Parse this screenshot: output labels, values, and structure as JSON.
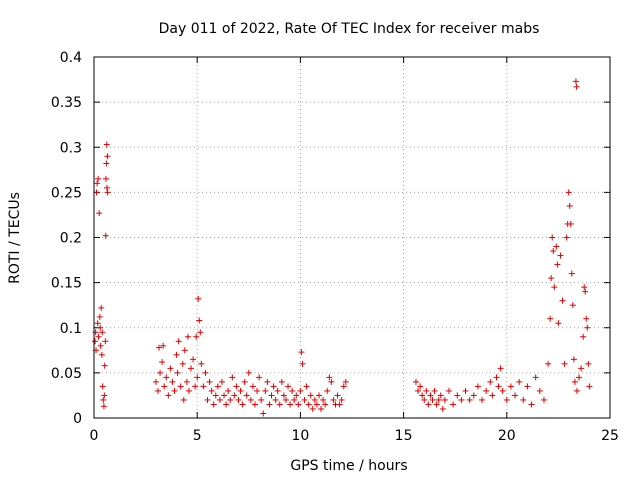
{
  "chart_data": {
    "type": "scatter",
    "title": "Day 011 of 2022, Rate Of TEC Index for receiver mabs",
    "xlabel": "GPS time / hours",
    "ylabel": "ROTI / TECUs",
    "xlim": [
      0,
      25
    ],
    "ylim": [
      0,
      0.4
    ],
    "xticks": [
      "0",
      "5",
      "10",
      "15",
      "20",
      "25"
    ],
    "yticks": [
      "0",
      "0.05",
      "0.1",
      "0.15",
      "0.2",
      "0.25",
      "0.3",
      "0.35",
      "0.4"
    ],
    "grid": true,
    "marker": "+",
    "color": "#e00000",
    "series": [
      {
        "values": [
          [
            0.05,
            0.085
          ],
          [
            0.08,
            0.095
          ],
          [
            0.1,
            0.075
          ],
          [
            0.12,
            0.25
          ],
          [
            0.15,
            0.26
          ],
          [
            0.18,
            0.105
          ],
          [
            0.2,
            0.265
          ],
          [
            0.22,
            0.09
          ],
          [
            0.25,
            0.227
          ],
          [
            0.28,
            0.112
          ],
          [
            0.3,
            0.1
          ],
          [
            0.32,
            0.08
          ],
          [
            0.35,
            0.122
          ],
          [
            0.38,
            0.07
          ],
          [
            0.4,
            0.095
          ],
          [
            0.42,
            0.035
          ],
          [
            0.45,
            0.02
          ],
          [
            0.48,
            0.013
          ],
          [
            0.5,
            0.025
          ],
          [
            0.52,
            0.058
          ],
          [
            0.55,
            0.085
          ],
          [
            0.57,
            0.202
          ],
          [
            0.58,
            0.265
          ],
          [
            0.6,
            0.282
          ],
          [
            0.62,
            0.303
          ],
          [
            0.63,
            0.255
          ],
          [
            0.65,
            0.29
          ],
          [
            0.66,
            0.25
          ],
          [
            3.0,
            0.04
          ],
          [
            3.1,
            0.03
          ],
          [
            3.15,
            0.078
          ],
          [
            3.2,
            0.05
          ],
          [
            3.3,
            0.062
          ],
          [
            3.35,
            0.08
          ],
          [
            3.4,
            0.035
          ],
          [
            3.5,
            0.045
          ],
          [
            3.6,
            0.025
          ],
          [
            3.7,
            0.055
          ],
          [
            3.8,
            0.04
          ],
          [
            3.9,
            0.03
          ],
          [
            4.0,
            0.07
          ],
          [
            4.05,
            0.05
          ],
          [
            4.1,
            0.085
          ],
          [
            4.2,
            0.035
          ],
          [
            4.3,
            0.06
          ],
          [
            4.35,
            0.02
          ],
          [
            4.4,
            0.075
          ],
          [
            4.5,
            0.04
          ],
          [
            4.55,
            0.09
          ],
          [
            4.6,
            0.03
          ],
          [
            4.7,
            0.055
          ],
          [
            4.8,
            0.065
          ],
          [
            4.9,
            0.035
          ],
          [
            4.95,
            0.09
          ],
          [
            5.0,
            0.045
          ],
          [
            5.05,
            0.132
          ],
          [
            5.1,
            0.108
          ],
          [
            5.15,
            0.095
          ],
          [
            5.2,
            0.06
          ],
          [
            5.3,
            0.035
          ],
          [
            5.4,
            0.05
          ],
          [
            5.5,
            0.02
          ],
          [
            5.6,
            0.04
          ],
          [
            5.7,
            0.03
          ],
          [
            5.8,
            0.015
          ],
          [
            5.9,
            0.025
          ],
          [
            6.0,
            0.035
          ],
          [
            6.1,
            0.02
          ],
          [
            6.2,
            0.04
          ],
          [
            6.3,
            0.025
          ],
          [
            6.4,
            0.015
          ],
          [
            6.5,
            0.03
          ],
          [
            6.6,
            0.02
          ],
          [
            6.7,
            0.045
          ],
          [
            6.8,
            0.025
          ],
          [
            6.9,
            0.035
          ],
          [
            7.0,
            0.02
          ],
          [
            7.1,
            0.03
          ],
          [
            7.2,
            0.015
          ],
          [
            7.3,
            0.04
          ],
          [
            7.4,
            0.025
          ],
          [
            7.5,
            0.05
          ],
          [
            7.6,
            0.02
          ],
          [
            7.7,
            0.035
          ],
          [
            7.8,
            0.015
          ],
          [
            7.9,
            0.03
          ],
          [
            8.0,
            0.045
          ],
          [
            8.1,
            0.02
          ],
          [
            8.2,
            0.005
          ],
          [
            8.3,
            0.03
          ],
          [
            8.4,
            0.04
          ],
          [
            8.5,
            0.015
          ],
          [
            8.6,
            0.025
          ],
          [
            8.7,
            0.035
          ],
          [
            8.8,
            0.02
          ],
          [
            8.9,
            0.03
          ],
          [
            9.0,
            0.015
          ],
          [
            9.1,
            0.04
          ],
          [
            9.2,
            0.025
          ],
          [
            9.3,
            0.02
          ],
          [
            9.4,
            0.035
          ],
          [
            9.5,
            0.015
          ],
          [
            9.6,
            0.03
          ],
          [
            9.7,
            0.02
          ],
          [
            9.8,
            0.025
          ],
          [
            9.9,
            0.015
          ],
          [
            10.0,
            0.03
          ],
          [
            10.05,
            0.073
          ],
          [
            10.1,
            0.06
          ],
          [
            10.2,
            0.02
          ],
          [
            10.3,
            0.035
          ],
          [
            10.4,
            0.015
          ],
          [
            10.5,
            0.025
          ],
          [
            10.6,
            0.01
          ],
          [
            10.7,
            0.02
          ],
          [
            10.8,
            0.015
          ],
          [
            10.9,
            0.025
          ],
          [
            11.0,
            0.01
          ],
          [
            11.1,
            0.02
          ],
          [
            11.2,
            0.015
          ],
          [
            11.3,
            0.03
          ],
          [
            11.4,
            0.045
          ],
          [
            11.5,
            0.04
          ],
          [
            11.6,
            0.02
          ],
          [
            11.7,
            0.015
          ],
          [
            11.8,
            0.025
          ],
          [
            11.9,
            0.015
          ],
          [
            12.0,
            0.02
          ],
          [
            12.1,
            0.035
          ],
          [
            12.2,
            0.04
          ],
          [
            15.6,
            0.04
          ],
          [
            15.7,
            0.03
          ],
          [
            15.8,
            0.035
          ],
          [
            15.9,
            0.025
          ],
          [
            16.0,
            0.02
          ],
          [
            16.1,
            0.03
          ],
          [
            16.2,
            0.015
          ],
          [
            16.3,
            0.025
          ],
          [
            16.4,
            0.02
          ],
          [
            16.5,
            0.03
          ],
          [
            16.6,
            0.015
          ],
          [
            16.7,
            0.02
          ],
          [
            16.8,
            0.025
          ],
          [
            16.9,
            0.01
          ],
          [
            17.0,
            0.02
          ],
          [
            17.2,
            0.03
          ],
          [
            17.4,
            0.015
          ],
          [
            17.6,
            0.025
          ],
          [
            17.8,
            0.02
          ],
          [
            18.0,
            0.03
          ],
          [
            18.2,
            0.02
          ],
          [
            18.4,
            0.025
          ],
          [
            18.6,
            0.035
          ],
          [
            18.8,
            0.02
          ],
          [
            19.0,
            0.03
          ],
          [
            19.2,
            0.04
          ],
          [
            19.3,
            0.025
          ],
          [
            19.5,
            0.045
          ],
          [
            19.6,
            0.035
          ],
          [
            19.7,
            0.055
          ],
          [
            19.8,
            0.03
          ],
          [
            20.0,
            0.02
          ],
          [
            20.2,
            0.035
          ],
          [
            20.4,
            0.025
          ],
          [
            20.6,
            0.04
          ],
          [
            20.8,
            0.02
          ],
          [
            21.0,
            0.035
          ],
          [
            21.2,
            0.015
          ],
          [
            21.4,
            0.045
          ],
          [
            21.6,
            0.03
          ],
          [
            21.8,
            0.02
          ],
          [
            22.0,
            0.06
          ],
          [
            22.1,
            0.11
          ],
          [
            22.15,
            0.155
          ],
          [
            22.2,
            0.2
          ],
          [
            22.25,
            0.185
          ],
          [
            22.3,
            0.145
          ],
          [
            22.4,
            0.19
          ],
          [
            22.45,
            0.17
          ],
          [
            22.5,
            0.105
          ],
          [
            22.6,
            0.18
          ],
          [
            22.7,
            0.13
          ],
          [
            22.8,
            0.06
          ],
          [
            22.9,
            0.2
          ],
          [
            22.95,
            0.215
          ],
          [
            23.0,
            0.25
          ],
          [
            23.05,
            0.235
          ],
          [
            23.1,
            0.215
          ],
          [
            23.15,
            0.16
          ],
          [
            23.2,
            0.125
          ],
          [
            23.25,
            0.065
          ],
          [
            23.3,
            0.04
          ],
          [
            23.35,
            0.373
          ],
          [
            23.38,
            0.367
          ],
          [
            23.4,
            0.03
          ],
          [
            23.5,
            0.045
          ],
          [
            23.6,
            0.055
          ],
          [
            23.7,
            0.09
          ],
          [
            23.75,
            0.145
          ],
          [
            23.8,
            0.14
          ],
          [
            23.85,
            0.11
          ],
          [
            23.9,
            0.1
          ],
          [
            23.95,
            0.06
          ],
          [
            24.0,
            0.035
          ]
        ]
      }
    ]
  }
}
